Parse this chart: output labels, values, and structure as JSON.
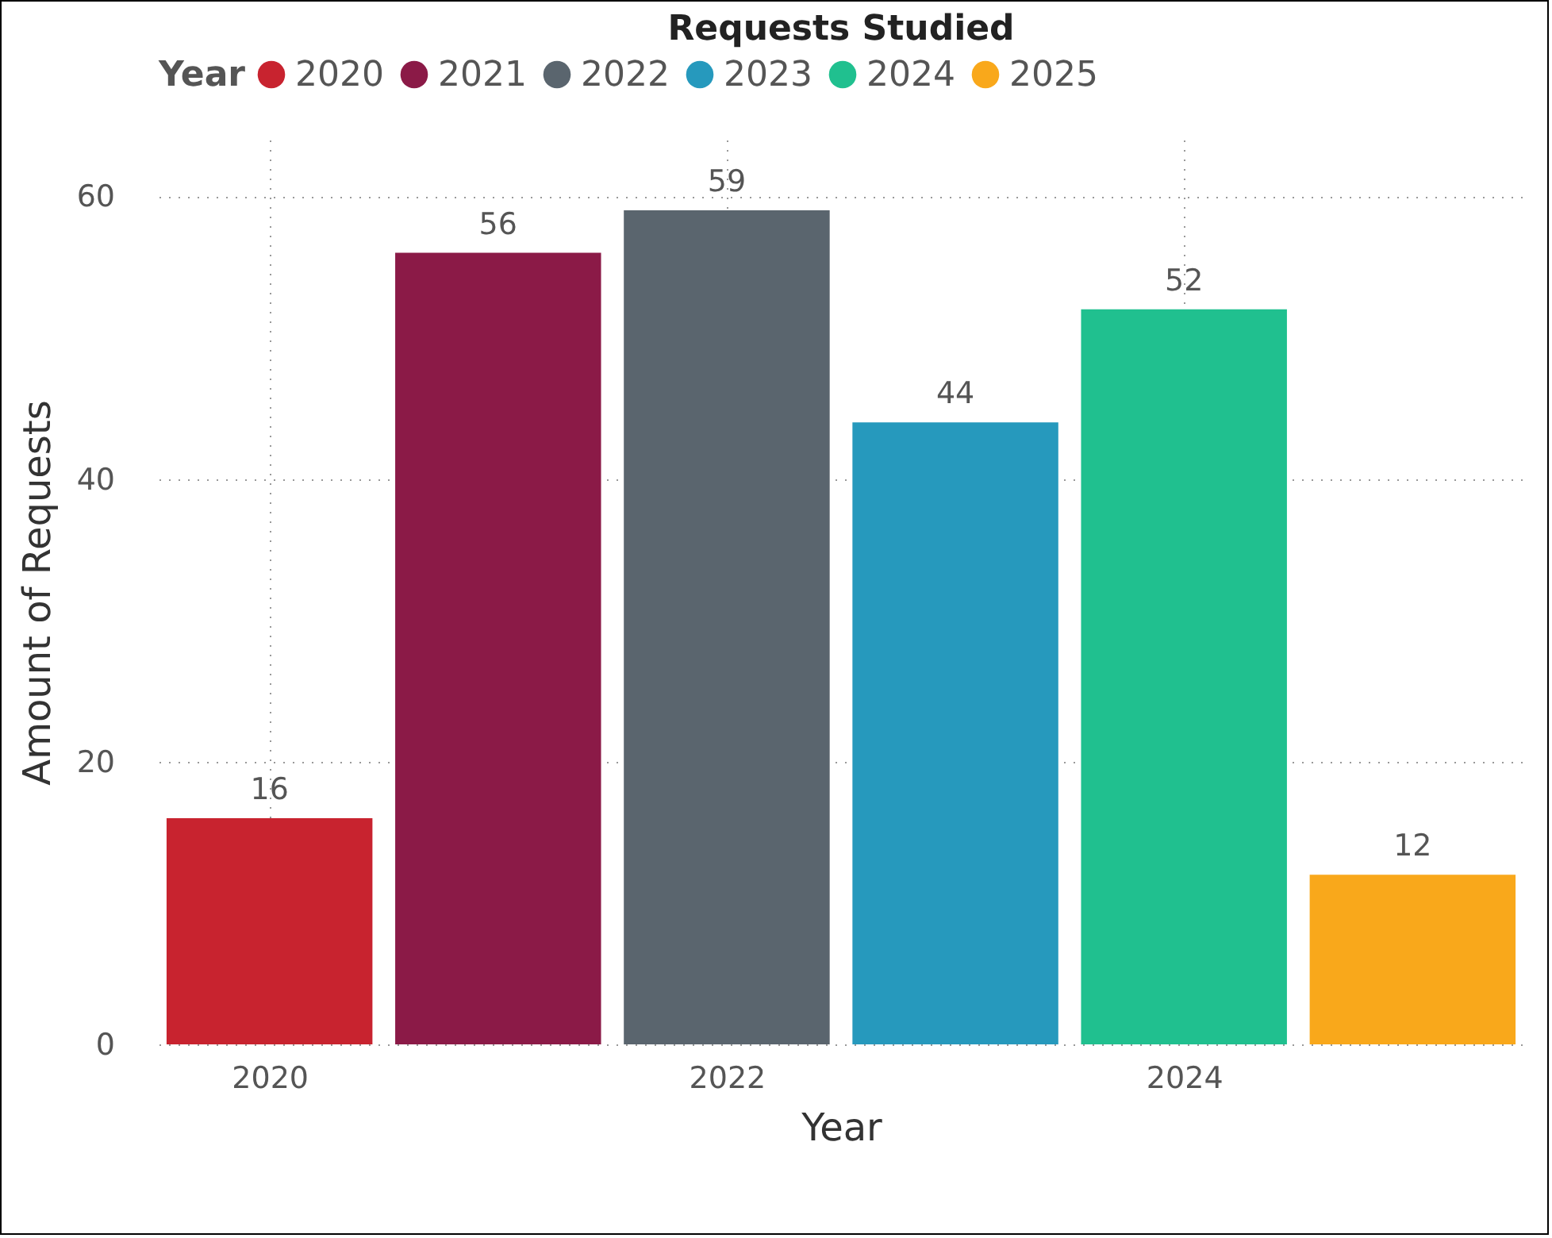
{
  "chart_data": {
    "type": "bar",
    "title": "Requests Studied",
    "xlabel": "Year",
    "ylabel": "Amount of Requests",
    "legend_title": "Year",
    "series": [
      {
        "name": "2020",
        "color": "#c8232f",
        "x": [
          2020
        ],
        "values": [
          16
        ]
      },
      {
        "name": "2021",
        "color": "#8b1a47",
        "x": [
          2021
        ],
        "values": [
          56
        ]
      },
      {
        "name": "2022",
        "color": "#5a656e",
        "x": [
          2022
        ],
        "values": [
          59
        ]
      },
      {
        "name": "2023",
        "color": "#2699bd",
        "x": [
          2023
        ],
        "values": [
          44
        ]
      },
      {
        "name": "2024",
        "color": "#20c08f",
        "x": [
          2024
        ],
        "values": [
          52
        ]
      },
      {
        "name": "2025",
        "color": "#f9a81b",
        "x": [
          2025
        ],
        "values": [
          12
        ]
      }
    ],
    "xlim": [
      2019.55,
      2025.45
    ],
    "xticks": [
      2020,
      2022,
      2024
    ],
    "ylim": [
      0,
      64
    ],
    "yticks": [
      0,
      20,
      40,
      60
    ],
    "grid": true,
    "legend": "top left",
    "data_labels": true
  }
}
